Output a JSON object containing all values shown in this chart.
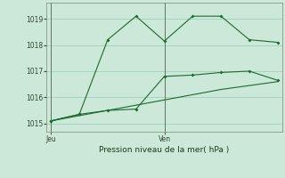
{
  "background_color": "#cce8d8",
  "grid_color": "#99ccbb",
  "line_color": "#1a6b2a",
  "title": "Pression niveau de la mer( hPa )",
  "ylim": [
    1014.7,
    1019.6
  ],
  "yticks": [
    1015,
    1016,
    1017,
    1018,
    1019
  ],
  "xlim": [
    -0.3,
    16.3
  ],
  "vline_x": [
    0,
    8
  ],
  "vline_labels": [
    "Jeu",
    "Ven"
  ],
  "line_bottom_x": [
    0,
    2,
    4,
    6,
    8,
    10,
    12,
    14,
    16
  ],
  "line_bottom_y": [
    1015.1,
    1015.3,
    1015.5,
    1015.7,
    1015.9,
    1016.1,
    1016.3,
    1016.45,
    1016.6
  ],
  "line_mid_x": [
    0,
    2,
    4,
    6,
    8,
    10,
    12,
    14,
    16
  ],
  "line_mid_y": [
    1015.1,
    1015.35,
    1015.5,
    1015.55,
    1016.8,
    1016.85,
    1016.95,
    1017.0,
    1016.65
  ],
  "line_top_x": [
    0,
    2,
    4,
    6,
    8,
    10,
    12,
    14,
    16
  ],
  "line_top_y": [
    1015.1,
    1015.35,
    1018.2,
    1019.1,
    1018.15,
    1019.1,
    1019.1,
    1018.2,
    1018.1
  ],
  "figsize": [
    3.2,
    2.0
  ],
  "dpi": 100
}
